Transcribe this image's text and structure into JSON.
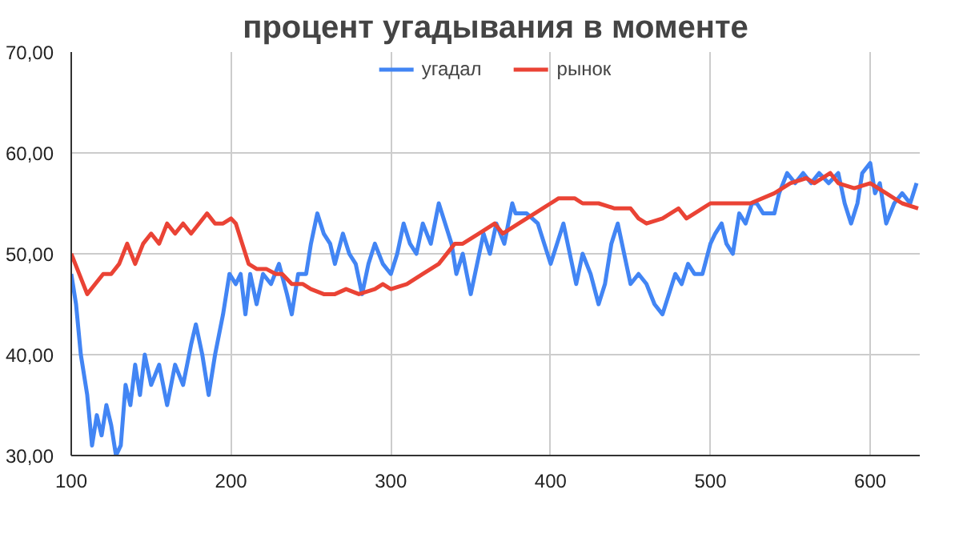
{
  "chart_data": {
    "type": "line",
    "title": "процент угадывания в моменте",
    "legend": "top",
    "grid": true,
    "marker": "none",
    "line_style": "solid",
    "xlim": [
      100,
      631
    ],
    "xticks": [
      100,
      200,
      300,
      400,
      500,
      600
    ],
    "ylim": [
      30,
      70
    ],
    "yticks": [
      {
        "value": 30,
        "label": "30,00"
      },
      {
        "value": 40,
        "label": "40,00"
      },
      {
        "value": 50,
        "label": "50,00"
      },
      {
        "value": 60,
        "label": "60,00"
      },
      {
        "value": 70,
        "label": "70,00"
      }
    ],
    "series": [
      {
        "name": "угадал",
        "color": "#4285f4",
        "x": [
          100,
          103,
          106,
          110,
          113,
          116,
          119,
          122,
          125,
          128,
          131,
          134,
          137,
          140,
          143,
          146,
          150,
          155,
          160,
          165,
          170,
          175,
          178,
          182,
          186,
          190,
          195,
          199,
          203,
          206,
          209,
          212,
          216,
          220,
          225,
          230,
          235,
          238,
          242,
          247,
          250,
          254,
          258,
          262,
          265,
          270,
          274,
          278,
          282,
          286,
          290,
          295,
          300,
          304,
          308,
          312,
          316,
          320,
          325,
          330,
          334,
          338,
          341,
          345,
          350,
          354,
          358,
          362,
          366,
          371,
          376,
          378,
          385,
          392,
          396,
          400,
          404,
          408,
          412,
          416,
          420,
          425,
          430,
          434,
          438,
          442,
          446,
          450,
          455,
          460,
          465,
          470,
          474,
          478,
          482,
          486,
          490,
          495,
          500,
          503,
          507,
          510,
          514,
          518,
          522,
          526,
          529,
          533,
          540,
          543,
          548,
          553,
          558,
          563,
          568,
          574,
          580,
          584,
          588,
          592,
          595,
          600,
          603,
          606,
          610,
          615,
          620,
          625,
          629
        ],
        "values": [
          48,
          45,
          40,
          36,
          31,
          34,
          32,
          35,
          33,
          30,
          31,
          37,
          35,
          39,
          36,
          40,
          37,
          39,
          35,
          39,
          37,
          41,
          43,
          40,
          36,
          40,
          44,
          48,
          47,
          48,
          44,
          48,
          45,
          48,
          47,
          49,
          46,
          44,
          48,
          48,
          51,
          54,
          52,
          51,
          49,
          52,
          50,
          49,
          46,
          49,
          51,
          49,
          48,
          50,
          53,
          51,
          50,
          53,
          51,
          55,
          53,
          51,
          48,
          50,
          46,
          49,
          52,
          50,
          53,
          51,
          55,
          54,
          54,
          53,
          51,
          49,
          51,
          53,
          50,
          47,
          50,
          48,
          45,
          47,
          51,
          53,
          50,
          47,
          48,
          47,
          45,
          44,
          46,
          48,
          47,
          49,
          48,
          48,
          51,
          52,
          53,
          51,
          50,
          54,
          53,
          55,
          55,
          54,
          54,
          56,
          58,
          57,
          58,
          57,
          58,
          57,
          58,
          55,
          53,
          55,
          58,
          59,
          56,
          57,
          53,
          55,
          56,
          55,
          57
        ]
      },
      {
        "name": "рынок",
        "color": "#ea4335",
        "x": [
          100,
          105,
          110,
          115,
          120,
          125,
          130,
          135,
          140,
          145,
          150,
          155,
          160,
          165,
          170,
          175,
          180,
          185,
          190,
          195,
          200,
          203,
          207,
          211,
          216,
          222,
          228,
          232,
          238,
          245,
          250,
          258,
          265,
          272,
          280,
          290,
          295,
          300,
          310,
          320,
          330,
          340,
          345,
          355,
          365,
          370,
          380,
          390,
          400,
          405,
          415,
          420,
          430,
          440,
          450,
          455,
          460,
          470,
          480,
          485,
          490,
          500,
          505,
          515,
          525,
          540,
          550,
          560,
          565,
          575,
          580,
          590,
          600,
          610,
          620,
          630
        ],
        "values": [
          50,
          48,
          46,
          47,
          48,
          48,
          49,
          51,
          49,
          51,
          52,
          51,
          53,
          52,
          53,
          52,
          53,
          54,
          53,
          53,
          53.5,
          53,
          51,
          49,
          48.5,
          48.5,
          48,
          48,
          47,
          47,
          46.5,
          46,
          46,
          46.5,
          46,
          46.5,
          47,
          46.5,
          47,
          48,
          49,
          51,
          51,
          52,
          53,
          52,
          53,
          54,
          55,
          55.5,
          55.5,
          55,
          55,
          54.5,
          54.5,
          53.5,
          53,
          53.5,
          54.5,
          53.5,
          54,
          55,
          55,
          55,
          55,
          56,
          57,
          57.5,
          57,
          58,
          57,
          56.5,
          57,
          56,
          55,
          54.5
        ]
      }
    ]
  }
}
